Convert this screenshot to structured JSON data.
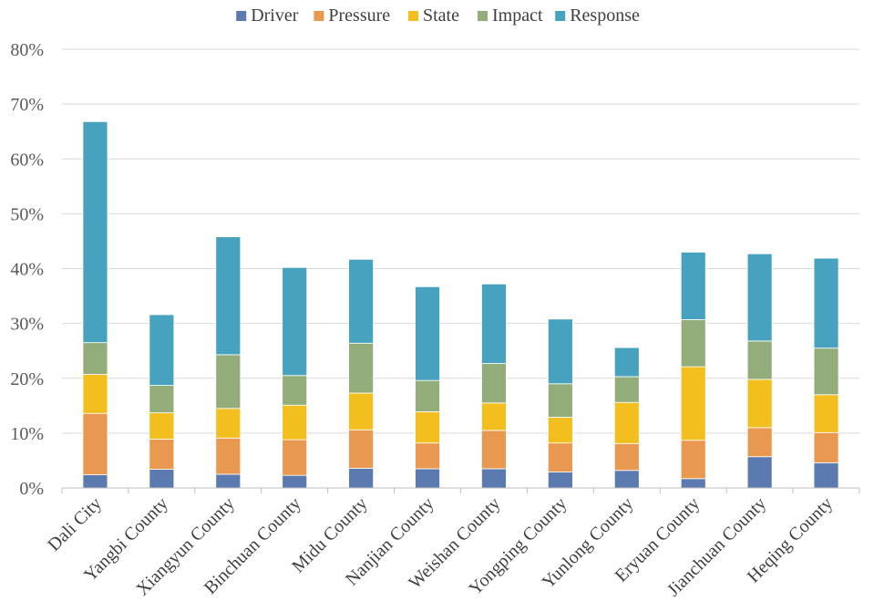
{
  "chart_data": {
    "type": "bar",
    "stacked": true,
    "title": "",
    "xlabel": "",
    "ylabel": "",
    "ylim": [
      0,
      80
    ],
    "y_tick_format": "percent",
    "y_ticks": [
      0,
      10,
      20,
      30,
      40,
      50,
      60,
      70,
      80
    ],
    "grid": true,
    "legend_position": "top",
    "categories": [
      "Dali City",
      "Yangbi County",
      "Xiangyun County",
      "Binchuan County",
      "Midu County",
      "Nanjian County",
      "Weishan County",
      "Yongping County",
      "Yunlong County",
      "Eryuan County",
      "Jianchuan County",
      "Heqing County"
    ],
    "series": [
      {
        "name": "Driver",
        "color": "#5B7BB0",
        "values": [
          2.4,
          3.4,
          2.5,
          2.3,
          3.6,
          3.5,
          3.5,
          2.9,
          3.2,
          1.7,
          5.7,
          4.6
        ]
      },
      {
        "name": "Pressure",
        "color": "#E9994F",
        "values": [
          11.2,
          5.5,
          6.6,
          6.5,
          7.0,
          4.7,
          7.0,
          5.3,
          4.9,
          7.0,
          5.3,
          5.5
        ]
      },
      {
        "name": "State",
        "color": "#F2BF1E",
        "values": [
          7.1,
          4.8,
          5.4,
          6.3,
          6.7,
          5.7,
          5.0,
          4.7,
          7.5,
          13.4,
          8.8,
          6.9
        ]
      },
      {
        "name": "Impact",
        "color": "#93AD7A",
        "values": [
          5.8,
          5.0,
          9.8,
          5.4,
          9.1,
          5.7,
          7.2,
          6.1,
          4.7,
          8.6,
          7.0,
          8.5
        ]
      },
      {
        "name": "Response",
        "color": "#47A2BF",
        "values": [
          40.3,
          12.9,
          21.5,
          19.7,
          15.3,
          17.1,
          14.5,
          11.8,
          5.3,
          12.3,
          15.9,
          16.4
        ]
      }
    ]
  }
}
